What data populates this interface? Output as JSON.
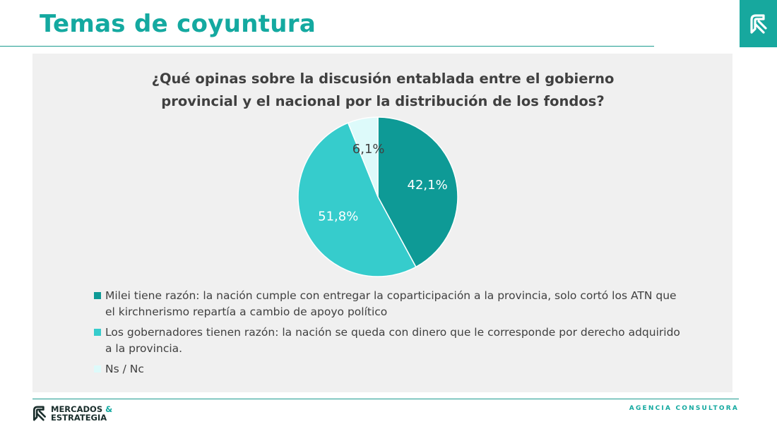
{
  "page": {
    "title": "Temas de coyuntura",
    "footer_brand_line1": "MERCADOS",
    "footer_brand_amp": "&",
    "footer_brand_line2": "ESTRATEGIA",
    "footer_tagline": "AGENCIA CONSULTORA"
  },
  "colors": {
    "accent": "#14a9a0",
    "slice_milei": "#0e9a96",
    "slice_gobernadores": "#36cccc",
    "slice_nsnc": "#ddfafa",
    "panel_bg": "#f0f0f0"
  },
  "icons": {
    "corner": "brand-logo-icon",
    "footer": "brand-logo-icon"
  },
  "chart_data": {
    "type": "pie",
    "title": "¿Qué opinas sobre la discusión entablada entre el gobierno provincial y el nacional por la distribución de los fondos?",
    "categories": [
      "Milei tiene razón: la nación cumple con entregar la coparticipación a la provincia, solo cortó los ATN que el kirchnerismo repartía a cambio de apoyo político",
      "Los gobernadores tienen razón: la nación se queda con dinero que le corresponde por derecho adquirido a la provincia.",
      "Ns / Nc"
    ],
    "values": [
      42.1,
      51.8,
      6.1
    ],
    "data_labels": [
      "42,1%",
      "51,8%",
      "6,1%"
    ],
    "colors": [
      "#0e9a96",
      "#36cccc",
      "#ddfafa"
    ],
    "legend_position": "bottom"
  }
}
